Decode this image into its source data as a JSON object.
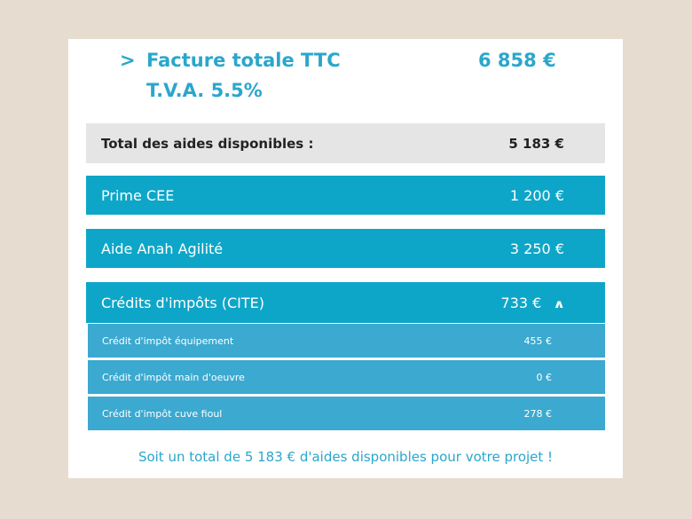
{
  "invoice": {
    "chevron": ">",
    "total_label": "Facture totale TTC",
    "total_value": "6 858 €",
    "vat_label": "T.V.A. 5.5%"
  },
  "aids": {
    "total_label": "Total des aides disponibles :",
    "total_value": "5 183 €",
    "items": [
      {
        "label": "Prime CEE",
        "value": "1 200 €"
      },
      {
        "label": "Aide Anah Agilité",
        "value": "3 250 €"
      },
      {
        "label": "Crédits d'impôts (CITE)",
        "value": "733 €",
        "expanded": true
      }
    ],
    "cite_details": [
      {
        "label": "Crédit d'impôt équipement",
        "value": "455 €"
      },
      {
        "label": "Crédit d'impôt main d'oeuvre",
        "value": "0 €"
      },
      {
        "label": "Crédit d'impôt cuve fioul",
        "value": "278 €"
      }
    ]
  },
  "footer": "Soit un total de 5 183 € d'aides disponibles pour votre projet !"
}
